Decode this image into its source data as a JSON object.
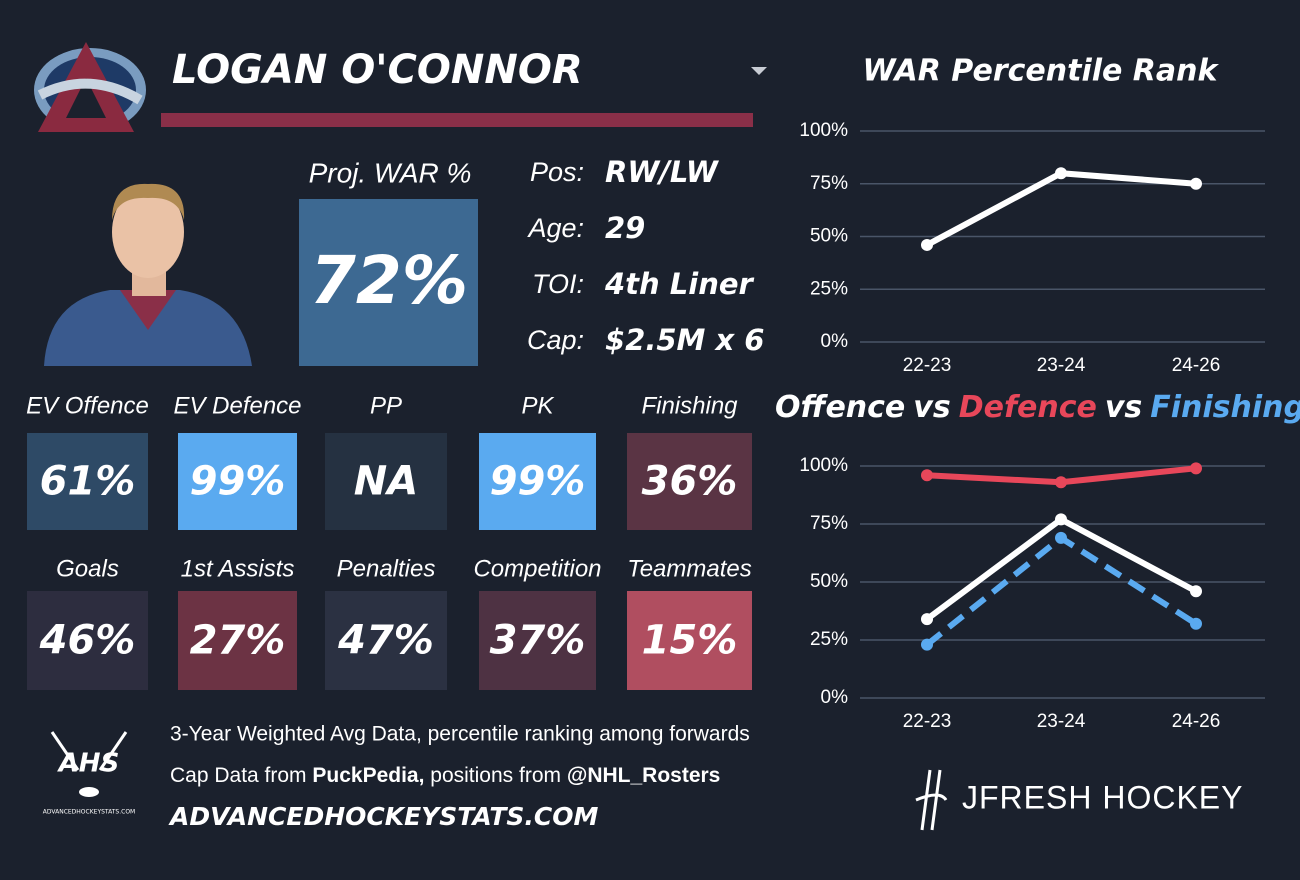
{
  "header": {
    "player": "LOGAN O'CONNOR"
  },
  "proj": {
    "label": "Proj. WAR %",
    "value": "72%",
    "color": "#3d6992"
  },
  "info": [
    {
      "label": "Pos:",
      "value": "RW/LW"
    },
    {
      "label": "Age:",
      "value": "29"
    },
    {
      "label": "TOI:",
      "value": "4th Liner"
    },
    {
      "label": "Cap:",
      "value": "$2.5M x 6"
    }
  ],
  "tiles": [
    {
      "label": "EV Offence",
      "value": "61%",
      "color": "#2e4a66"
    },
    {
      "label": "EV Defence",
      "value": "99%",
      "color": "#5aaaf0"
    },
    {
      "label": "PP",
      "value": "NA",
      "color": "#253141"
    },
    {
      "label": "PK",
      "value": "99%",
      "color": "#5aaaf0"
    },
    {
      "label": "Finishing",
      "value": "36%",
      "color": "#5a3444"
    },
    {
      "label": "Goals",
      "value": "46%",
      "color": "#2d2d3f"
    },
    {
      "label": "1st Assists",
      "value": "27%",
      "color": "#6c3344"
    },
    {
      "label": "Penalties",
      "value": "47%",
      "color": "#2b3142"
    },
    {
      "label": "Competition",
      "value": "37%",
      "color": "#4e3243"
    },
    {
      "label": "Teammates",
      "value": "15%",
      "color": "#b04e60"
    }
  ],
  "footer": {
    "line1": "3-Year Weighted Avg Data, percentile ranking among forwards",
    "line2": [
      "Cap Data from ",
      "PuckPedia,",
      " positions from ",
      "@NHL_Rosters"
    ],
    "site": "ADVANCEDHOCKEYSTATS.COM",
    "ahs": "AHS",
    "ahs_small": "ADVANCEDHOCKEYSTATS.COM",
    "brand": "JFRESH HOCKEY"
  },
  "chart_data": [
    {
      "type": "line",
      "title": "WAR Percentile Rank",
      "categories": [
        "22-23",
        "23-24",
        "24-26"
      ],
      "series": [
        {
          "name": null,
          "color": "#ffffff",
          "values": [
            46,
            80,
            75
          ]
        }
      ],
      "ylim": [
        0,
        100
      ],
      "yticks": [
        {
          "value": 0,
          "label": "0%"
        },
        {
          "value": 25,
          "label": "25%"
        },
        {
          "value": 50,
          "label": "50%"
        },
        {
          "value": 75,
          "label": "75%"
        },
        {
          "value": 100,
          "label": "100%"
        }
      ],
      "grid": true
    },
    {
      "type": "line",
      "title_separator": "vs",
      "categories": [
        "22-23",
        "23-24",
        "24-26"
      ],
      "series": [
        {
          "name": "Offence",
          "color": "#ffffff",
          "values": [
            34,
            77,
            46
          ]
        },
        {
          "name": "Defence",
          "color": "#e8475a",
          "values": [
            96,
            93,
            99
          ]
        },
        {
          "name": "Finishing",
          "color": "#5aaaf0",
          "values": [
            23,
            69,
            32
          ],
          "dashed": true
        }
      ],
      "ylim": [
        0,
        100
      ],
      "yticks": [
        {
          "value": 0,
          "label": "0%"
        },
        {
          "value": 25,
          "label": "25%"
        },
        {
          "value": 50,
          "label": "50%"
        },
        {
          "value": 75,
          "label": "75%"
        },
        {
          "value": 100,
          "label": "100%"
        }
      ],
      "grid": true
    }
  ]
}
